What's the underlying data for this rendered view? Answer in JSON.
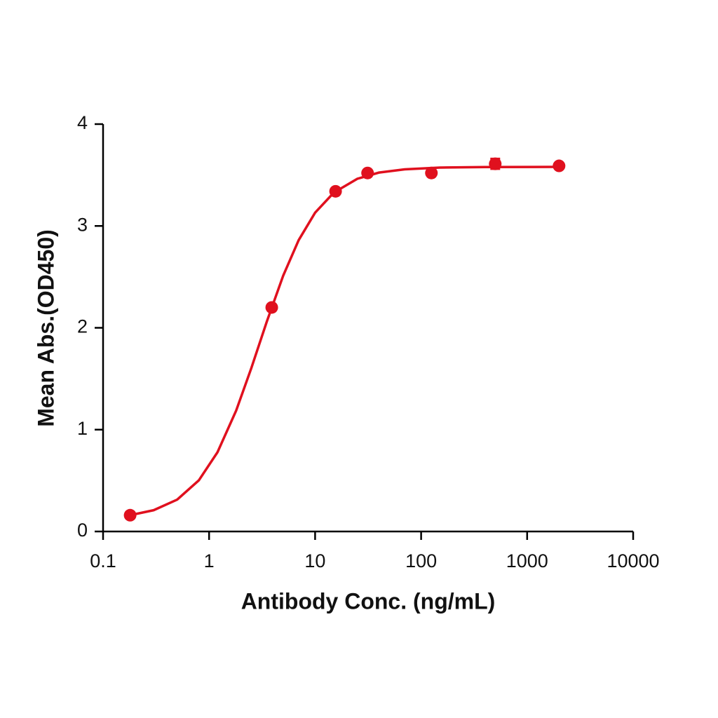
{
  "chart_data": {
    "type": "scatter",
    "xlabel": "Antibody Conc. (ng/mL)",
    "ylabel": "Mean Abs.(OD450)",
    "xscale": "log",
    "xlim": [
      0.1,
      10000
    ],
    "xticks": [
      0.1,
      1,
      10,
      100,
      1000,
      10000
    ],
    "ylim": [
      0,
      4
    ],
    "yticks": [
      0,
      1,
      2,
      3,
      4
    ],
    "grid": false,
    "color": "#e0101e",
    "x": [
      0.18,
      3.9,
      15.6,
      31.25,
      125,
      500,
      2000
    ],
    "values": [
      0.16,
      2.2,
      3.34,
      3.52,
      3.52,
      3.61,
      3.59
    ],
    "errors": [
      0.01,
      0.02,
      0.02,
      0.02,
      0.02,
      0.05,
      0.02
    ],
    "curve": {
      "x": [
        0.18,
        0.3,
        0.5,
        0.8,
        1.2,
        1.8,
        2.5,
        3.5,
        5,
        7,
        10,
        15,
        25,
        40,
        70,
        150,
        400,
        2000
      ],
      "y": [
        0.16,
        0.209,
        0.313,
        0.502,
        0.778,
        1.187,
        1.603,
        2.06,
        2.512,
        2.861,
        3.13,
        3.327,
        3.463,
        3.524,
        3.556,
        3.573,
        3.578,
        3.58
      ]
    }
  }
}
